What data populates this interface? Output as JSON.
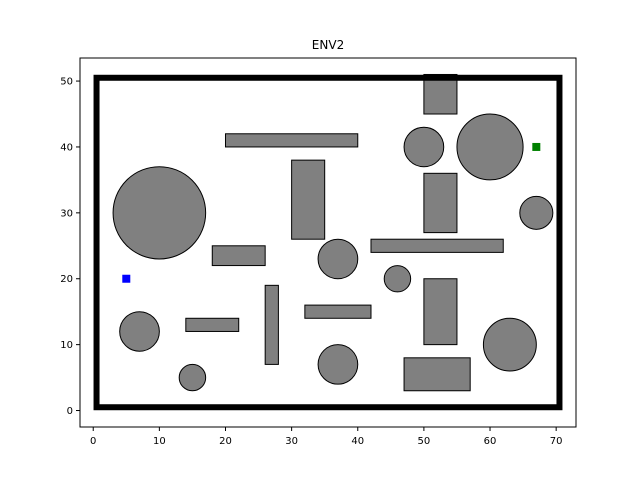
{
  "chart_data": {
    "type": "scatter",
    "title": "ENV2",
    "xlabel": "",
    "ylabel": "",
    "xlim": [
      -2,
      73
    ],
    "ylim": [
      -2.5,
      53.5
    ],
    "xticks": [
      0,
      10,
      20,
      30,
      40,
      50,
      60,
      70
    ],
    "yticks": [
      0,
      10,
      20,
      30,
      40,
      50
    ],
    "grid": false,
    "colors": {
      "obstacle_fill": "#808080",
      "obstacle_edge": "#000000",
      "boundary": "#000000",
      "start": "#0000ff",
      "goal": "#008000"
    },
    "boundary": {
      "x0": 0.5,
      "y0": 0.5,
      "x1": 70.5,
      "y1": 50.5
    },
    "rectangles": [
      {
        "x": 50,
        "y": 45,
        "w": 5,
        "h": 6
      },
      {
        "x": 20,
        "y": 40,
        "w": 20,
        "h": 2
      },
      {
        "x": 30,
        "y": 26,
        "w": 5,
        "h": 12
      },
      {
        "x": 50,
        "y": 27,
        "w": 5,
        "h": 9
      },
      {
        "x": 18,
        "y": 22,
        "w": 8,
        "h": 3
      },
      {
        "x": 42,
        "y": 24,
        "w": 20,
        "h": 2
      },
      {
        "x": 26,
        "y": 7,
        "w": 2,
        "h": 12
      },
      {
        "x": 32,
        "y": 14,
        "w": 10,
        "h": 2
      },
      {
        "x": 14,
        "y": 12,
        "w": 8,
        "h": 2
      },
      {
        "x": 50,
        "y": 10,
        "w": 5,
        "h": 10
      },
      {
        "x": 47,
        "y": 3,
        "w": 10,
        "h": 5
      }
    ],
    "circles": [
      {
        "cx": 10,
        "cy": 30,
        "r": 7
      },
      {
        "cx": 60,
        "cy": 40,
        "r": 5
      },
      {
        "cx": 50,
        "cy": 40,
        "r": 3
      },
      {
        "cx": 67,
        "cy": 30,
        "r": 2.5
      },
      {
        "cx": 37,
        "cy": 23,
        "r": 3
      },
      {
        "cx": 46,
        "cy": 20,
        "r": 2
      },
      {
        "cx": 7,
        "cy": 12,
        "r": 3
      },
      {
        "cx": 15,
        "cy": 5,
        "r": 2
      },
      {
        "cx": 37,
        "cy": 7,
        "r": 3
      },
      {
        "cx": 63,
        "cy": 10,
        "r": 4
      }
    ],
    "start": {
      "x": 5,
      "y": 20
    },
    "goal": {
      "x": 67,
      "y": 40
    }
  }
}
